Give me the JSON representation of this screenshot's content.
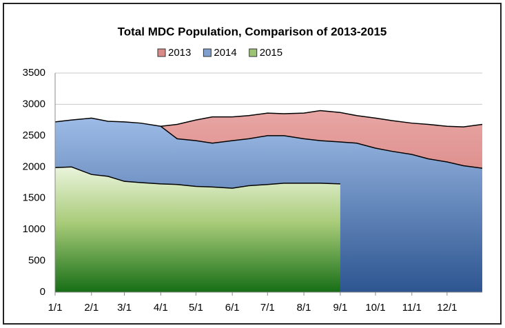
{
  "chart_data": {
    "type": "area",
    "title": "Total MDC Population, Comparison of 2013-2015",
    "x": [
      1,
      15,
      32,
      46,
      60,
      74,
      91,
      105,
      121,
      135,
      152,
      166,
      182,
      196,
      213,
      227,
      244,
      258,
      274,
      288,
      305,
      319,
      335,
      349,
      365
    ],
    "series": [
      {
        "name": "2013",
        "color": "#d98b8a",
        "values": [
          null,
          null,
          null,
          null,
          null,
          null,
          2650,
          2680,
          2750,
          2800,
          2800,
          2820,
          2860,
          2850,
          2860,
          2900,
          2870,
          2820,
          2780,
          2740,
          2700,
          2680,
          2650,
          2640,
          2680
        ]
      },
      {
        "name": "2014",
        "color": "#7f9fcf",
        "values": [
          2720,
          2750,
          2780,
          2730,
          2720,
          2700,
          2650,
          2450,
          2420,
          2380,
          2420,
          2450,
          2500,
          2500,
          2450,
          2420,
          2400,
          2380,
          2300,
          2250,
          2200,
          2130,
          2080,
          2020,
          1980
        ]
      },
      {
        "name": "2015",
        "color": "#9dc472",
        "values": [
          1990,
          2000,
          1880,
          1850,
          1770,
          1750,
          1730,
          1720,
          1690,
          1680,
          1660,
          1700,
          1720,
          1740,
          1740,
          1740,
          1730,
          null,
          null,
          null,
          null,
          null,
          null,
          null,
          null
        ]
      }
    ],
    "xlim": [
      1,
      365
    ],
    "xticks": [
      {
        "value": 1,
        "label": "1/1"
      },
      {
        "value": 32,
        "label": "2/1"
      },
      {
        "value": 60,
        "label": "3/1"
      },
      {
        "value": 91,
        "label": "4/1"
      },
      {
        "value": 121,
        "label": "5/1"
      },
      {
        "value": 152,
        "label": "6/1"
      },
      {
        "value": 182,
        "label": "7/1"
      },
      {
        "value": 213,
        "label": "8/1"
      },
      {
        "value": 244,
        "label": "9/1"
      },
      {
        "value": 274,
        "label": "10/1"
      },
      {
        "value": 305,
        "label": "11/1"
      },
      {
        "value": 335,
        "label": "12/1"
      }
    ],
    "ylim": [
      0,
      3500
    ],
    "yticks": [
      0,
      500,
      1000,
      1500,
      2000,
      2500,
      3000,
      3500
    ],
    "grid": true,
    "legend": "top"
  }
}
